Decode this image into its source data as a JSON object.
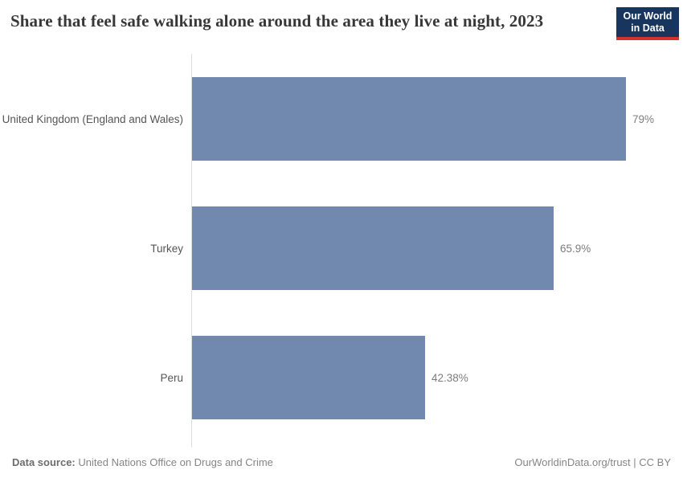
{
  "header": {
    "title": "Share that feel safe walking alone around the area they live at night, 2023",
    "logo": {
      "line1": "Our World",
      "line2": "in Data"
    }
  },
  "chart_data": {
    "type": "bar",
    "orientation": "horizontal",
    "title": "Share that feel safe walking alone around the area they live at night, 2023",
    "categories": [
      "United Kingdom (England and Wales)",
      "Turkey",
      "Peru"
    ],
    "values": [
      79,
      65.9,
      42.38
    ],
    "value_labels": [
      "79%",
      "65.9%",
      "42.38%"
    ],
    "xlabel": "",
    "ylabel": "",
    "xlim": [
      0,
      79
    ],
    "grid": false,
    "legend": false,
    "bar_color": "#7189ae",
    "axis_line_color": "#dedede"
  },
  "footer": {
    "datasource_label": "Data source:",
    "datasource_value": "United Nations Office on Drugs and Crime",
    "attribution": "OurWorldinData.org/trust | CC BY"
  },
  "colors": {
    "title": "#383838",
    "category_label": "#555555",
    "value_label": "#7d7d7d",
    "logo_bg": "#18355e",
    "logo_accent": "#d0342c",
    "footer_text": "#858585"
  }
}
